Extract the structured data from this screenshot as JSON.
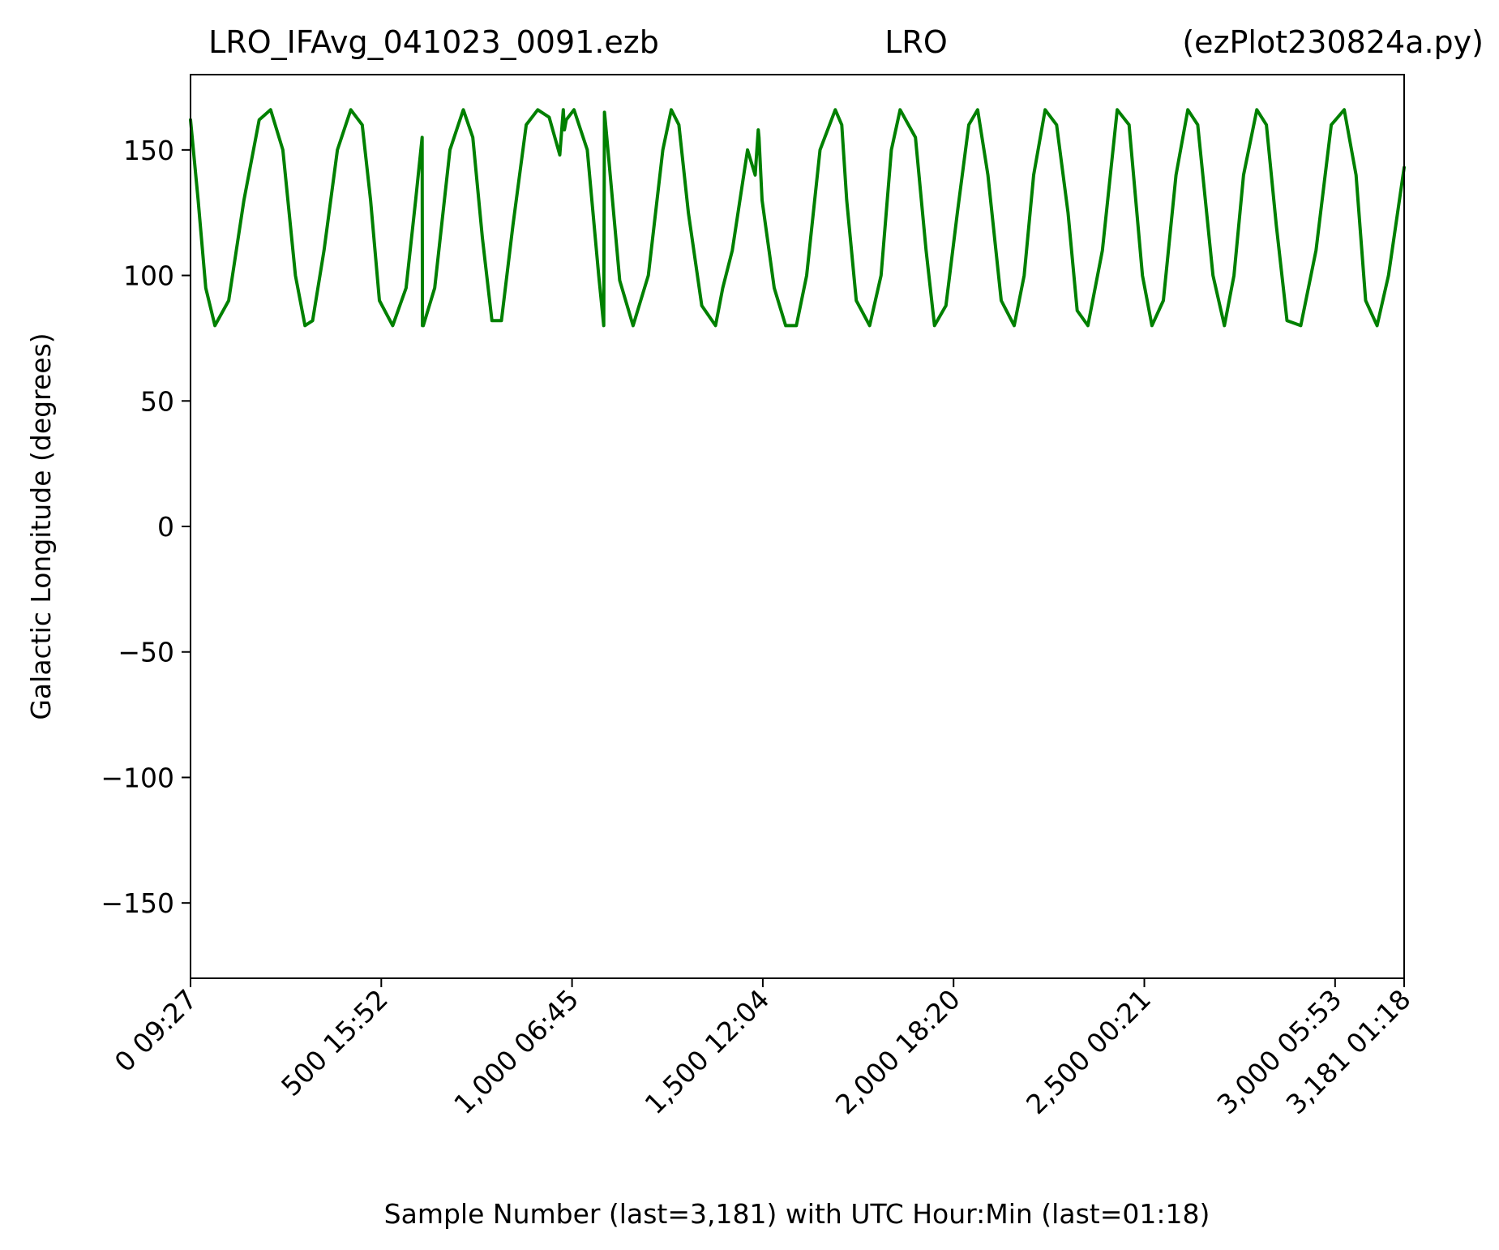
{
  "chart_data": {
    "type": "line",
    "title_left": "LRO_IFAvg_041023_0091.ezb",
    "title_center": "LRO",
    "title_right": "(ezPlot230824a.py)",
    "xlabel": "Sample Number (last=3,181) with UTC Hour:Min (last=01:18)",
    "ylabel": "Galactic Longitude (degrees)",
    "xlim": [
      0,
      3181
    ],
    "ylim": [
      -180,
      180
    ],
    "grid": false,
    "line_color": "#008000",
    "y_ticks": [
      {
        "value": 150,
        "label": "150"
      },
      {
        "value": 100,
        "label": "100"
      },
      {
        "value": 50,
        "label": "50"
      },
      {
        "value": 0,
        "label": "0"
      },
      {
        "value": -50,
        "label": "−50"
      },
      {
        "value": -100,
        "label": "−100"
      },
      {
        "value": -150,
        "label": "−150"
      }
    ],
    "x_ticks": [
      {
        "value": 0,
        "label": "0  09:27"
      },
      {
        "value": 500,
        "label": "500  15:52"
      },
      {
        "value": 1000,
        "label": "1,000  06:45"
      },
      {
        "value": 1500,
        "label": "1,500  12:04"
      },
      {
        "value": 2000,
        "label": "2,000  18:20"
      },
      {
        "value": 2500,
        "label": "2,500  00:21"
      },
      {
        "value": 3000,
        "label": "3,000  05:53"
      },
      {
        "value": 3181,
        "label": "3,181  01:18"
      }
    ],
    "series": [
      {
        "x": [
          0,
          20,
          40,
          64,
          100,
          140,
          180,
          210,
          242,
          275,
          300,
          320,
          350,
          385,
          420,
          450,
          472,
          495,
          530,
          565,
          590,
          607,
          608,
          610,
          640,
          680,
          715,
          740,
          765,
          790,
          815,
          845,
          880,
          910,
          940,
          968,
          977,
          980,
          985,
          1005,
          1040,
          1070,
          1083,
          1085,
          1087,
          1100,
          1125,
          1160,
          1200,
          1238,
          1260,
          1280,
          1305,
          1340,
          1376,
          1395,
          1420,
          1460,
          1480,
          1488,
          1490,
          1498,
          1530,
          1560,
          1588,
          1615,
          1650,
          1690,
          1707,
          1720,
          1745,
          1780,
          1810,
          1837,
          1860,
          1900,
          1928,
          1950,
          1980,
          2010,
          2040,
          2063,
          2090,
          2125,
          2159,
          2185,
          2210,
          2240,
          2270,
          2300,
          2324,
          2352,
          2390,
          2429,
          2460,
          2495,
          2520,
          2550,
          2583,
          2614,
          2640,
          2680,
          2710,
          2735,
          2760,
          2795,
          2820,
          2846,
          2874,
          2910,
          2950,
          2990,
          3024,
          3055,
          3080,
          3110,
          3140,
          3181
        ],
        "y": [
          162,
          130,
          95,
          80,
          90,
          130,
          162,
          166,
          150,
          100,
          80,
          82,
          110,
          150,
          166,
          160,
          130,
          90,
          80,
          95,
          130,
          155,
          80,
          80,
          95,
          150,
          166,
          155,
          115,
          82,
          82,
          120,
          160,
          166,
          163,
          148,
          166,
          158,
          162,
          166,
          150,
          100,
          80,
          165,
          162,
          140,
          98,
          80,
          100,
          150,
          166,
          160,
          125,
          88,
          80,
          95,
          110,
          150,
          140,
          158,
          155,
          130,
          95,
          80,
          80,
          100,
          150,
          166,
          160,
          130,
          90,
          80,
          100,
          150,
          166,
          155,
          110,
          80,
          88,
          125,
          160,
          166,
          140,
          90,
          80,
          100,
          140,
          166,
          160,
          125,
          86,
          80,
          110,
          166,
          160,
          100,
          80,
          90,
          140,
          166,
          160,
          100,
          80,
          100,
          140,
          166,
          160,
          120,
          82,
          80,
          110,
          160,
          166,
          140,
          90,
          80,
          100,
          143
        ]
      }
    ]
  }
}
